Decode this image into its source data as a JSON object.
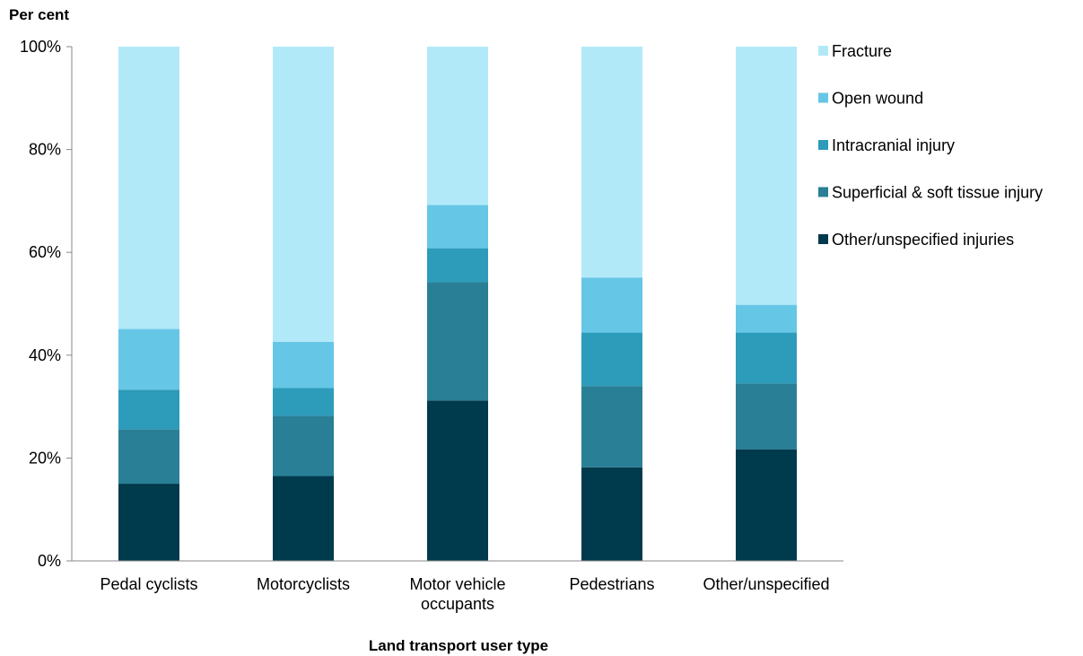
{
  "chart_data": {
    "type": "bar",
    "stacked": true,
    "ylabel": "Per cent",
    "xlabel": "Land transport user type",
    "ylim": [
      0,
      100
    ],
    "yticks": [
      0,
      20,
      40,
      60,
      80,
      100
    ],
    "ytick_labels": [
      "0%",
      "20%",
      "40%",
      "60%",
      "80%",
      "100%"
    ],
    "grid": false,
    "legend_position": "right",
    "categories": [
      [
        "Pedal cyclists"
      ],
      [
        "Motorcyclists"
      ],
      [
        "Motor vehicle",
        "occupants"
      ],
      [
        "Pedestrians"
      ],
      [
        "Other/unspecified"
      ]
    ],
    "series": [
      {
        "name": "Other/unspecified injuries",
        "color": "#003a4d",
        "values": [
          15.0,
          16.5,
          31.2,
          18.2,
          21.7
        ]
      },
      {
        "name": "Superficial & soft tissue injury",
        "color": "#297f96",
        "values": [
          10.6,
          11.7,
          23.0,
          15.8,
          12.8
        ]
      },
      {
        "name": "Intracranial injury",
        "color": "#2d9bba",
        "values": [
          7.7,
          5.4,
          6.6,
          10.4,
          9.9
        ]
      },
      {
        "name": "Open wound",
        "color": "#66c6e6",
        "values": [
          11.8,
          9.0,
          8.4,
          10.7,
          5.4
        ]
      },
      {
        "name": "Fracture",
        "color": "#b2e9f9",
        "values": [
          54.9,
          57.4,
          30.8,
          44.9,
          50.2
        ]
      }
    ],
    "legend_order": [
      "Fracture",
      "Open wound",
      "Intracranial injury",
      "Superficial & soft tissue injury",
      "Other/unspecified injuries"
    ]
  }
}
